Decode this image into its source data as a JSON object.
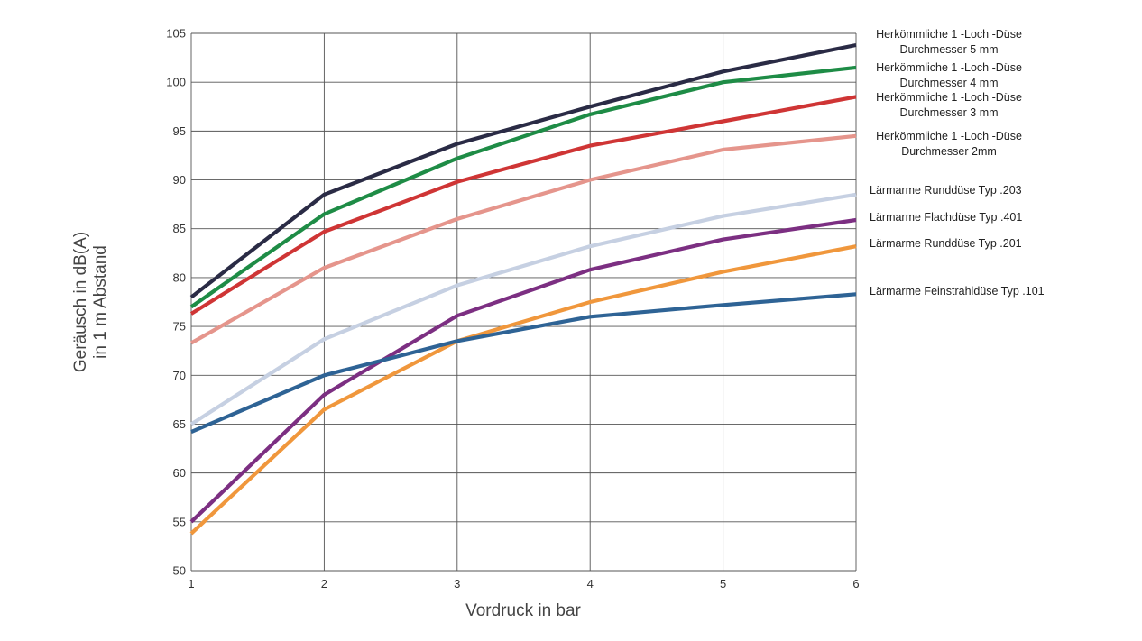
{
  "chart_data": {
    "type": "line",
    "xlabel": "Vordruck in bar",
    "ylabel": [
      "Geräusch in dB(A)",
      "in 1 m Abstand"
    ],
    "xlim": [
      1,
      6
    ],
    "ylim": [
      50,
      105
    ],
    "x_ticks": [
      1,
      2,
      3,
      4,
      5,
      6
    ],
    "y_ticks": [
      50,
      55,
      60,
      65,
      70,
      75,
      80,
      85,
      90,
      95,
      100,
      105
    ],
    "grid": true,
    "legend_placement": "right, labels beside line ends",
    "x": [
      1,
      2,
      3,
      4,
      5,
      6
    ],
    "series": [
      {
        "name": [
          "Herkömmliche 1 -Loch -Düse",
          "Durchmesser 5 mm"
        ],
        "color": "#2a2b45",
        "values": [
          78,
          88.5,
          93.7,
          97.5,
          101.1,
          103.8
        ]
      },
      {
        "name": [
          "Herkömmliche 1 -Loch -Düse",
          "Durchmesser 4 mm"
        ],
        "color": "#1e8c46",
        "values": [
          77,
          86.5,
          92.2,
          96.7,
          100,
          101.5
        ]
      },
      {
        "name": [
          "Herkömmliche 1 -Loch -Düse",
          "Durchmesser 3 mm"
        ],
        "color": "#cf3535",
        "values": [
          76.3,
          84.7,
          89.8,
          93.5,
          96,
          98.5
        ]
      },
      {
        "name": [
          "Herkömmliche 1 -Loch -Düse",
          "Durchmesser 2mm"
        ],
        "color": "#e5958c",
        "values": [
          73.3,
          81,
          86,
          90,
          93.1,
          94.5
        ]
      },
      {
        "name": [
          "Lärmarme Runddüse Typ .203"
        ],
        "color": "#c6d0e2",
        "values": [
          65,
          73.7,
          79.2,
          83.2,
          86.3,
          88.5
        ]
      },
      {
        "name": [
          "Lärmarme Flachdüse Typ .401"
        ],
        "color": "#7c2f82",
        "values": [
          55,
          68,
          76.1,
          80.8,
          83.9,
          85.9
        ]
      },
      {
        "name": [
          "Lärmarme Runddüse Typ .201"
        ],
        "color": "#f0973c",
        "values": [
          53.8,
          66.5,
          73.5,
          77.5,
          80.6,
          83.2
        ]
      },
      {
        "name": [
          "Lärmarme Feinstrahldüse Typ .101"
        ],
        "color": "#2e6395",
        "values": [
          64.2,
          70,
          73.5,
          76,
          77.2,
          78.3
        ]
      }
    ]
  }
}
